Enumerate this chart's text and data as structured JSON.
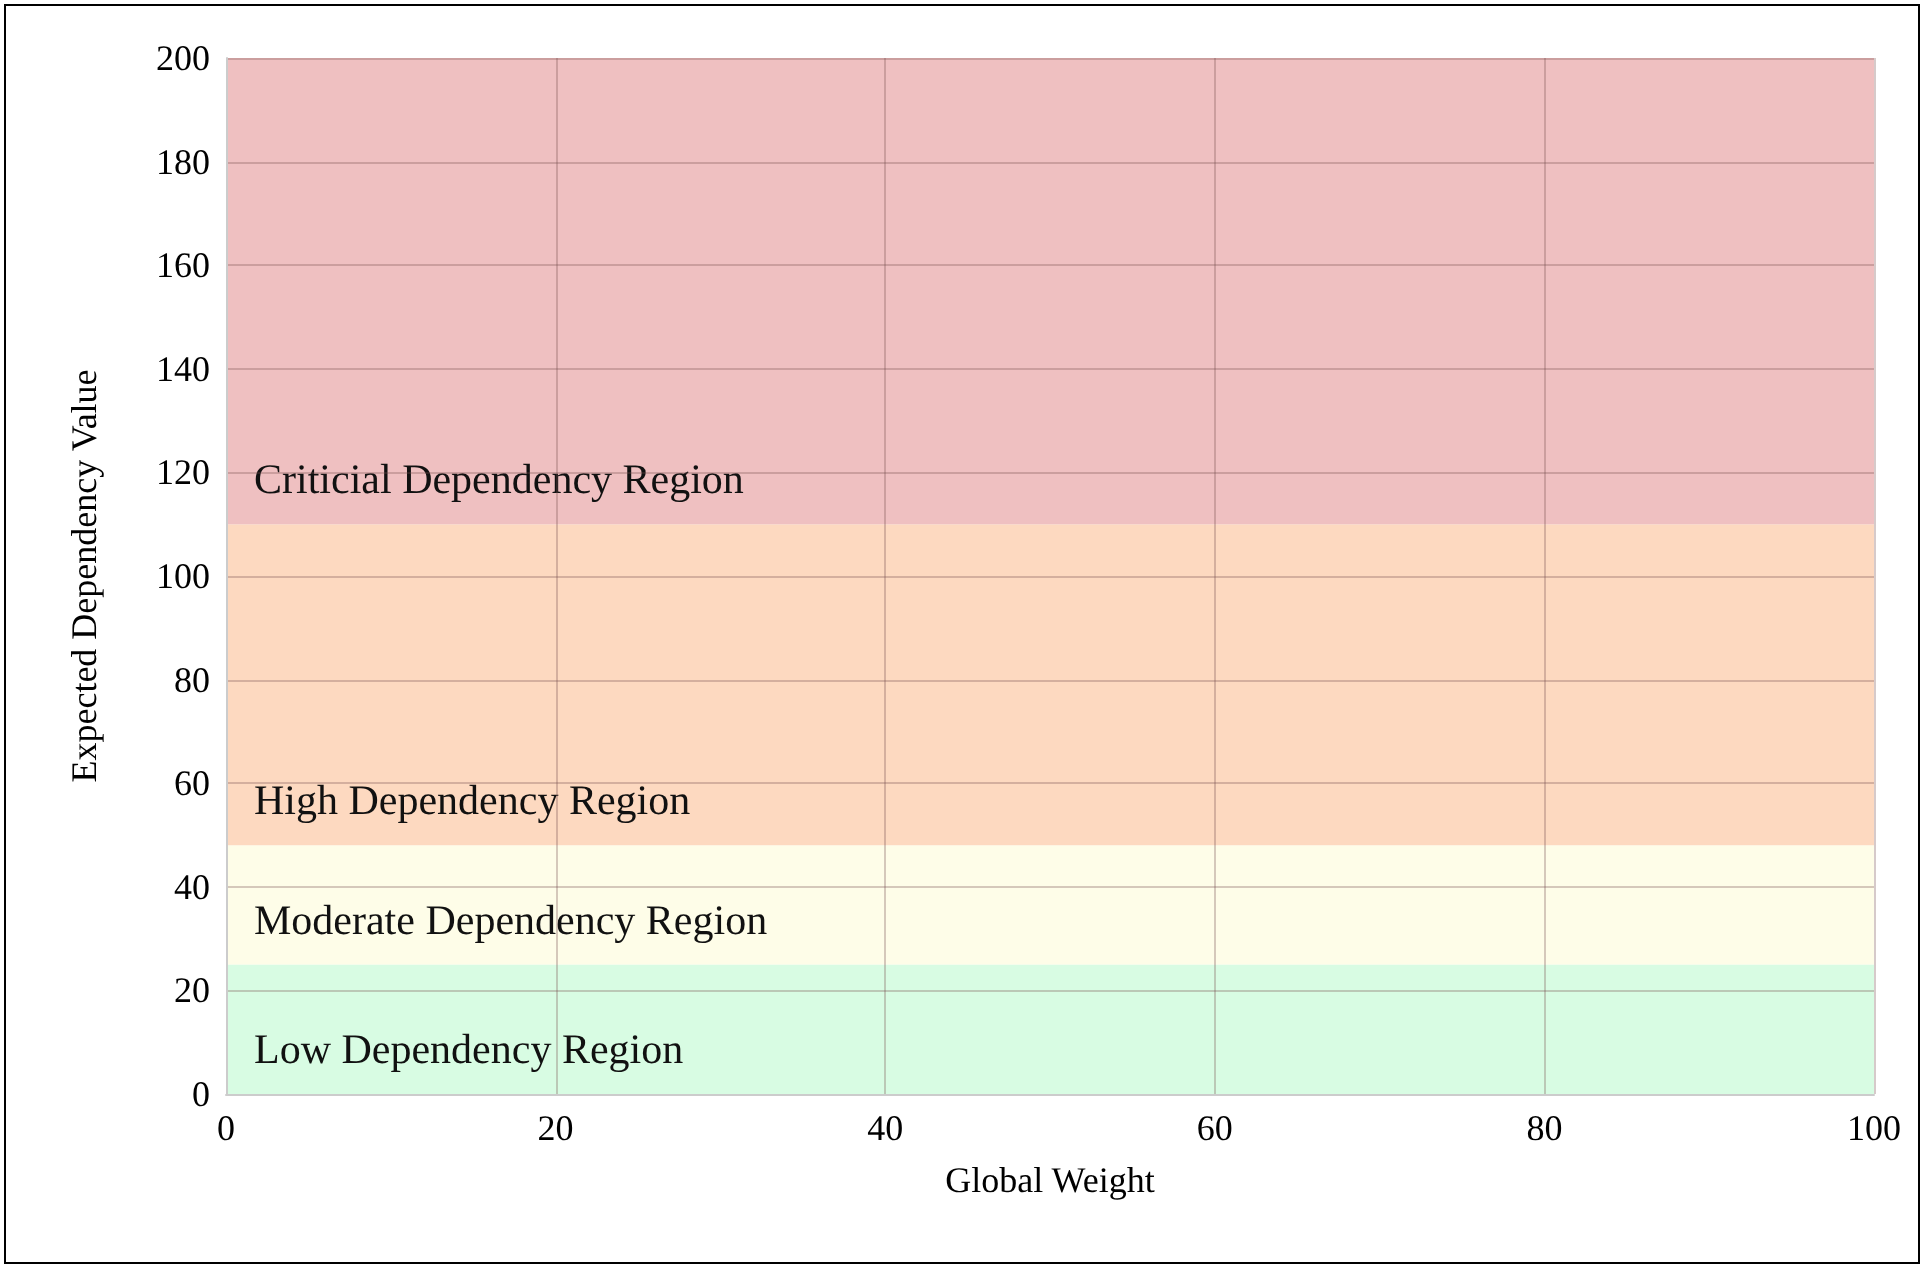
{
  "chart_data": {
    "type": "area",
    "xlabel": "Global Weight",
    "ylabel": "Expected Dependency Value",
    "xlim": [
      0,
      100
    ],
    "xticks": [
      0,
      20,
      40,
      60,
      80,
      100
    ],
    "ylim": [
      0,
      200
    ],
    "yticks": [
      0,
      20,
      40,
      60,
      80,
      100,
      120,
      140,
      160,
      180,
      200
    ],
    "grid": true,
    "bands": [
      {
        "axis": "y",
        "from": 0,
        "to": 25,
        "label": "Low Dependency Region",
        "color": "#d8fce3"
      },
      {
        "axis": "y",
        "from": 25,
        "to": 48,
        "label": "Moderate Dependency Region",
        "color": "#fefde8"
      },
      {
        "axis": "y",
        "from": 48,
        "to": 110,
        "label": "High Dependency Region",
        "color": "#fdd9c0"
      },
      {
        "axis": "y",
        "from": 110,
        "to": 200,
        "label": "Criticial Dependency Region",
        "color": "#efc0c1"
      }
    ]
  }
}
